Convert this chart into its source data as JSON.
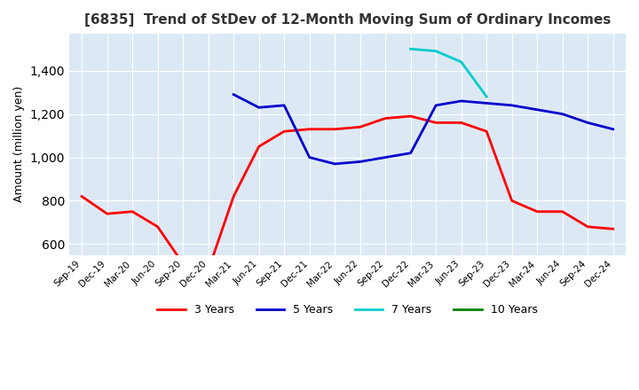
{
  "title": "[6835]  Trend of StDev of 12-Month Moving Sum of Ordinary Incomes",
  "ylabel": "Amount (million yen)",
  "ylim": [
    550,
    1570
  ],
  "yticks": [
    600,
    800,
    1000,
    1200,
    1400
  ],
  "bg_color": "#dce9f5",
  "line_colors": {
    "3y": "#ff0000",
    "5y": "#0000cc",
    "7y": "#00cccc",
    "10y": "#008000"
  },
  "legend_labels": [
    "3 Years",
    "5 Years",
    "7 Years",
    "10 Years"
  ],
  "x_labels": [
    "Sep-19",
    "Dec-19",
    "Mar-20",
    "Jun-20",
    "Sep-20",
    "Dec-20",
    "Mar-21",
    "Jun-21",
    "Sep-21",
    "Dec-21",
    "Mar-22",
    "Jun-22",
    "Sep-22",
    "Dec-22",
    "Mar-23",
    "Jun-23",
    "Sep-23",
    "Dec-23",
    "Mar-24",
    "Jun-24",
    "Sep-24",
    "Dec-24"
  ],
  "series_3y": [
    820,
    740,
    750,
    680,
    510,
    480,
    820,
    1050,
    1120,
    1130,
    1130,
    1140,
    1180,
    1190,
    1160,
    1160,
    1120,
    800,
    750,
    750,
    680,
    670
  ],
  "series_5y": [
    null,
    null,
    null,
    null,
    null,
    null,
    1290,
    1230,
    1240,
    1000,
    970,
    980,
    1000,
    1020,
    1240,
    1260,
    1250,
    1240,
    1220,
    1200,
    1160,
    1130
  ],
  "series_7y": [
    null,
    null,
    null,
    null,
    null,
    null,
    null,
    null,
    null,
    null,
    null,
    null,
    null,
    1500,
    1490,
    1440,
    1280,
    null,
    null,
    null,
    null,
    null
  ],
  "series_10y": [
    null,
    null,
    null,
    null,
    null,
    null,
    null,
    null,
    null,
    null,
    null,
    null,
    null,
    null,
    null,
    null,
    null,
    null,
    null,
    null,
    null,
    null
  ]
}
